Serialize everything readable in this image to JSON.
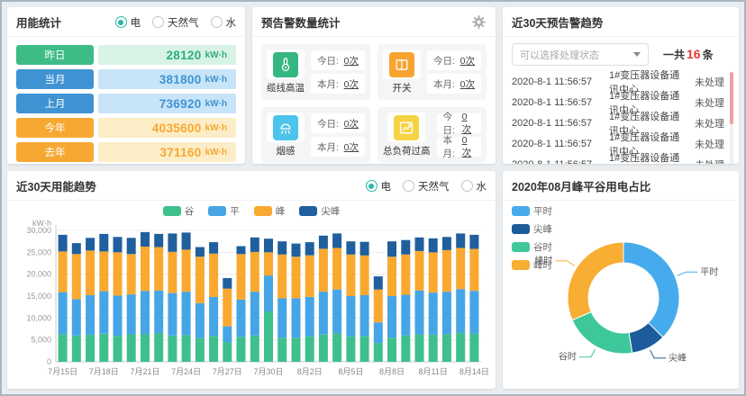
{
  "colors": {
    "accent_teal": "#2cb5aa",
    "count_red": "#e53935",
    "scroll_thumb_pink": "#f0a0a0"
  },
  "panels": {
    "energy_stats": {
      "title": "用能统计",
      "radios": [
        {
          "label": "电",
          "selected": true
        },
        {
          "label": "天然气",
          "selected": false
        },
        {
          "label": "水",
          "selected": false
        }
      ],
      "unit": "kW·h",
      "rows": [
        {
          "label": "昨日",
          "value": "28120",
          "chip_color": "#3dbc86",
          "value_color": "#2eae78",
          "bg": "#d8f3e6"
        },
        {
          "label": "当月",
          "value": "381800",
          "chip_color": "#3f93d2",
          "value_color": "#3f93d2",
          "bg": "#c8e4f8"
        },
        {
          "label": "上月",
          "value": "736920",
          "chip_color": "#3f93d2",
          "value_color": "#3f93d2",
          "bg": "#c8e4f8"
        },
        {
          "label": "今年",
          "value": "4035600",
          "chip_color": "#f7a832",
          "value_color": "#f7a832",
          "bg": "#fcedc6"
        },
        {
          "label": "去年",
          "value": "371160",
          "chip_color": "#f7a832",
          "value_color": "#f7a832",
          "bg": "#fcedc6"
        }
      ]
    },
    "alarm_stats": {
      "title": "预告警数量统计",
      "settings_icon": "gear-icon",
      "today_label": "今日:",
      "month_label": "本月:",
      "cards": [
        {
          "name": "缆线高温",
          "icon": "thermometer-icon",
          "color": "#35b782",
          "today": "0次",
          "month": "0次"
        },
        {
          "name": "开关",
          "icon": "switch-icon",
          "color": "#f8a430",
          "today": "0次",
          "month": "0次"
        },
        {
          "name": "烟感",
          "icon": "smoke-detector-icon",
          "color": "#4cc4ec",
          "today": "0次",
          "month": "0次"
        },
        {
          "name": "总负荷过高",
          "icon": "load-chart-icon",
          "color": "#f6d344",
          "today": "0次",
          "month": "0次"
        }
      ]
    },
    "alarm_trend": {
      "title": "近30天预告警趋势",
      "filter_placeholder": "可以选择处理状态",
      "total_prefix": "一共",
      "total_count": "16",
      "total_suffix": "条",
      "rows": [
        {
          "time": "2020-8-1 11:56:57",
          "device": "1#变压器设备通讯中心",
          "status": "未处理"
        },
        {
          "time": "2020-8-1 11:56:57",
          "device": "1#变压器设备通讯中心",
          "status": "未处理"
        },
        {
          "time": "2020-8-1 11:56:57",
          "device": "1#变压器设备通讯中心",
          "status": "未处理"
        },
        {
          "time": "2020-8-1 11:56:57",
          "device": "1#变压器设备通讯中心",
          "status": "未处理"
        },
        {
          "time": "2020-8-1 11:56:57",
          "device": "1#变压器设备通讯中心",
          "status": "未处理"
        }
      ]
    },
    "usage_trend": {
      "title": "近30天用能趋势",
      "radios": [
        {
          "label": "电",
          "selected": true
        },
        {
          "label": "天然气",
          "selected": false
        },
        {
          "label": "水",
          "selected": false
        }
      ]
    },
    "donut": {
      "title": "2020年08月峰平谷用电占比"
    }
  },
  "chart_data": [
    {
      "type": "bar",
      "stacked": true,
      "title": "近30天用能趋势",
      "ylabel": "kW·h",
      "ylim": [
        0,
        30000
      ],
      "ytick_step": 5000,
      "yticks": [
        "0",
        "5,000",
        "10,000",
        "15,000",
        "20,000",
        "25,000",
        "30,000"
      ],
      "grid": true,
      "legend_position": "top-center",
      "xtick_every": 3,
      "categories": [
        "7月15日",
        "7月16日",
        "7月17日",
        "7月18日",
        "7月19日",
        "7月20日",
        "7月21日",
        "7月22日",
        "7月23日",
        "7月24日",
        "7月25日",
        "7月26日",
        "7月27日",
        "7月28日",
        "7月29日",
        "7月30日",
        "7月31日",
        "8月1日",
        "8月2日",
        "8月3日",
        "8月4日",
        "8月5日",
        "8月6日",
        "8月7日",
        "8月8日",
        "8月9日",
        "8月10日",
        "8月11日",
        "8月12日",
        "8月13日",
        "8月14日"
      ],
      "series": [
        {
          "name": "谷",
          "color": "#3ec08c",
          "values": [
            6300,
            6000,
            6200,
            6400,
            5900,
            6300,
            6300,
            6600,
            6000,
            6100,
            5400,
            5900,
            4500,
            5700,
            6000,
            11500,
            5500,
            5500,
            5800,
            6200,
            6500,
            5800,
            5900,
            4300,
            5500,
            6000,
            6300,
            6200,
            6300,
            6600,
            6400
          ]
        },
        {
          "name": "平",
          "color": "#46a5e6",
          "values": [
            9600,
            8300,
            9000,
            9700,
            9200,
            9100,
            9900,
            9700,
            9700,
            9900,
            8000,
            8900,
            3600,
            8500,
            10000,
            8200,
            9000,
            9000,
            9000,
            9800,
            10000,
            9200,
            9300,
            4700,
            9500,
            9300,
            10000,
            9600,
            9700,
            10000,
            9800
          ]
        },
        {
          "name": "峰",
          "color": "#f9a930",
          "values": [
            9300,
            10300,
            10200,
            9100,
            9900,
            9200,
            10100,
            9900,
            9400,
            9600,
            10600,
            9900,
            8600,
            10400,
            9100,
            5300,
            10000,
            9500,
            9500,
            9800,
            9500,
            9500,
            9100,
            7500,
            9000,
            9200,
            9000,
            9200,
            9500,
            9400,
            9600
          ]
        },
        {
          "name": "尖峰",
          "color": "#1f5f9e",
          "values": [
            3800,
            2500,
            2900,
            4000,
            3500,
            3700,
            3300,
            3000,
            4200,
            3900,
            2200,
            2600,
            2400,
            1800,
            3300,
            3100,
            3000,
            3000,
            3000,
            3000,
            3300,
            3000,
            3100,
            3000,
            3500,
            3300,
            3100,
            3200,
            3000,
            3300,
            3200
          ]
        }
      ]
    },
    {
      "type": "pie",
      "subtype": "donut",
      "title": "2020年08月峰平谷用电占比",
      "legend_position": "top-left",
      "slices": [
        {
          "name": "平时",
          "color": "#45abec",
          "value": 37.5
        },
        {
          "name": "尖峰",
          "color": "#1d5c9a",
          "value": 10
        },
        {
          "name": "谷时",
          "color": "#3fc79c",
          "value": 21
        },
        {
          "name": "峰时",
          "color": "#f8ad33",
          "value": 31.5
        }
      ]
    }
  ]
}
